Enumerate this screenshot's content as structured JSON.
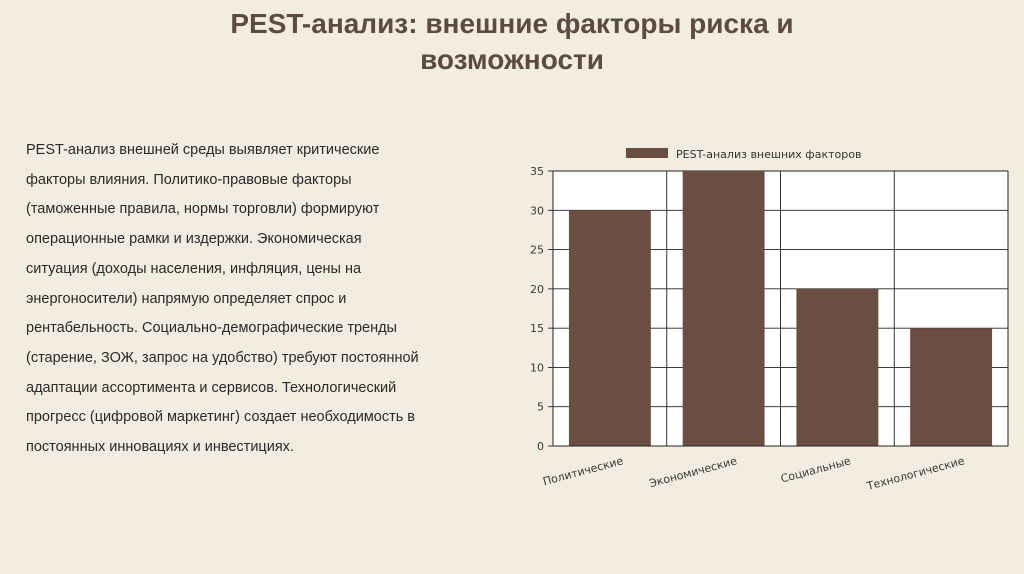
{
  "slide": {
    "title_line1": "PEST-анализ: внешние факторы риска и",
    "title_line2": "возможности"
  },
  "body": {
    "lines": [
      "PEST-анализ внешней среды выявляет критические",
      "факторы влияния. Политико-правовые факторы",
      "(таможенные правила, нормы торговли) формируют",
      "операционные рамки и издержки. Экономическая",
      "ситуация (доходы населения, инфляция, цены на",
      "энергоносители) напрямую определяет спрос и",
      "рентабельность. Социально-демографические тренды",
      "(старение, ЗОЖ, запрос на удобство) требуют постоянной",
      "адаптации ассортимента и сервисов. Технологический",
      "прогресс (цифровой маркетинг) создает необходимость в",
      "постоянных инновациях и инвестициях."
    ]
  },
  "chart_data": {
    "type": "bar",
    "categories": [
      "Политические",
      "Экономические",
      "Социальные",
      "Технологические"
    ],
    "series": [
      {
        "name": "PEST-анализ внешних факторов",
        "values": [
          30,
          35,
          20,
          15
        ],
        "color": "#6b4e42"
      }
    ],
    "ylim": [
      0,
      35
    ],
    "yticks": [
      "0",
      "5",
      "10",
      "15",
      "20",
      "25",
      "30",
      "35"
    ],
    "grid": true,
    "legend": "top"
  }
}
